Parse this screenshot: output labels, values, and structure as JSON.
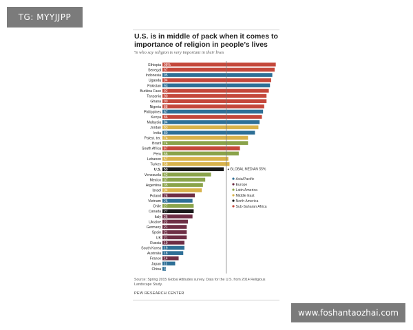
{
  "watermarks": {
    "top_left": "TG: MYYJJPP",
    "bottom_right": "www.foshantaozhai.com"
  },
  "header": {
    "title": "U.S. is in middle of pack when it comes to importance of religion in people’s lives",
    "subtitle": "% who say religion is very important in their lives"
  },
  "footer": {
    "source": "Source: Spring 2015 Global Attitudes survey. Data for the U.S. from 2014 Religious Landscape Study.",
    "credit": "PEW RESEARCH CENTER"
  },
  "colors": {
    "Asia/Pacific": "#2e6f96",
    "Europe": "#6e2e45",
    "Latin America": "#8aa34a",
    "Middle East": "#d8b24a",
    "North America": "#1a1a1a",
    "Sub-Saharan Africa": "#c4473a"
  },
  "chart_data": {
    "type": "bar",
    "orientation": "horizontal",
    "value_label_suffix_first": "%",
    "categories": [
      "Ethiopia",
      "Senegal",
      "Indonesia",
      "Uganda",
      "Pakistan",
      "Burkina Faso",
      "Tanzania",
      "Ghana",
      "Nigeria",
      "Philippines",
      "Kenya",
      "Malaysia",
      "Jordan",
      "India",
      "Palest. ter.",
      "Brazil",
      "South Africa",
      "Peru",
      "Lebanon",
      "Turkey",
      "U.S.",
      "Venezuela",
      "Mexico",
      "Argentina",
      "Israel",
      "Poland",
      "Vietnam",
      "Chile",
      "Canada",
      "Italy",
      "Ukraine",
      "Germany",
      "Spain",
      "UK",
      "Russia",
      "South Korea",
      "Australia",
      "France",
      "Japan",
      "China"
    ],
    "values": [
      98,
      97,
      95,
      94,
      93,
      92,
      90,
      90,
      88,
      87,
      86,
      84,
      83,
      80,
      74,
      74,
      67,
      66,
      57,
      58,
      53,
      42,
      37,
      35,
      34,
      28,
      26,
      27,
      27,
      26,
      22,
      21,
      21,
      21,
      19,
      19,
      18,
      14,
      11,
      3
    ],
    "regions": [
      "Sub-Saharan Africa",
      "Sub-Saharan Africa",
      "Asia/Pacific",
      "Sub-Saharan Africa",
      "Asia/Pacific",
      "Sub-Saharan Africa",
      "Sub-Saharan Africa",
      "Sub-Saharan Africa",
      "Sub-Saharan Africa",
      "Asia/Pacific",
      "Sub-Saharan Africa",
      "Asia/Pacific",
      "Middle East",
      "Asia/Pacific",
      "Middle East",
      "Latin America",
      "Sub-Saharan Africa",
      "Latin America",
      "Middle East",
      "Middle East",
      "North America",
      "Latin America",
      "Latin America",
      "Latin America",
      "Middle East",
      "Europe",
      "Asia/Pacific",
      "Latin America",
      "North America",
      "Europe",
      "Europe",
      "Europe",
      "Europe",
      "Europe",
      "Europe",
      "Asia/Pacific",
      "Asia/Pacific",
      "Europe",
      "Asia/Pacific",
      "Asia/Pacific"
    ],
    "highlight": "U.S.",
    "reference_line": {
      "value": 55,
      "label": "GLOBAL MEDIAN 55%"
    },
    "legend": [
      "Asia/Pacific",
      "Europe",
      "Latin America",
      "Middle East",
      "North America",
      "Sub-Saharan Africa"
    ],
    "legend_placement": "right",
    "xlim": [
      0,
      100
    ],
    "grid": false
  }
}
